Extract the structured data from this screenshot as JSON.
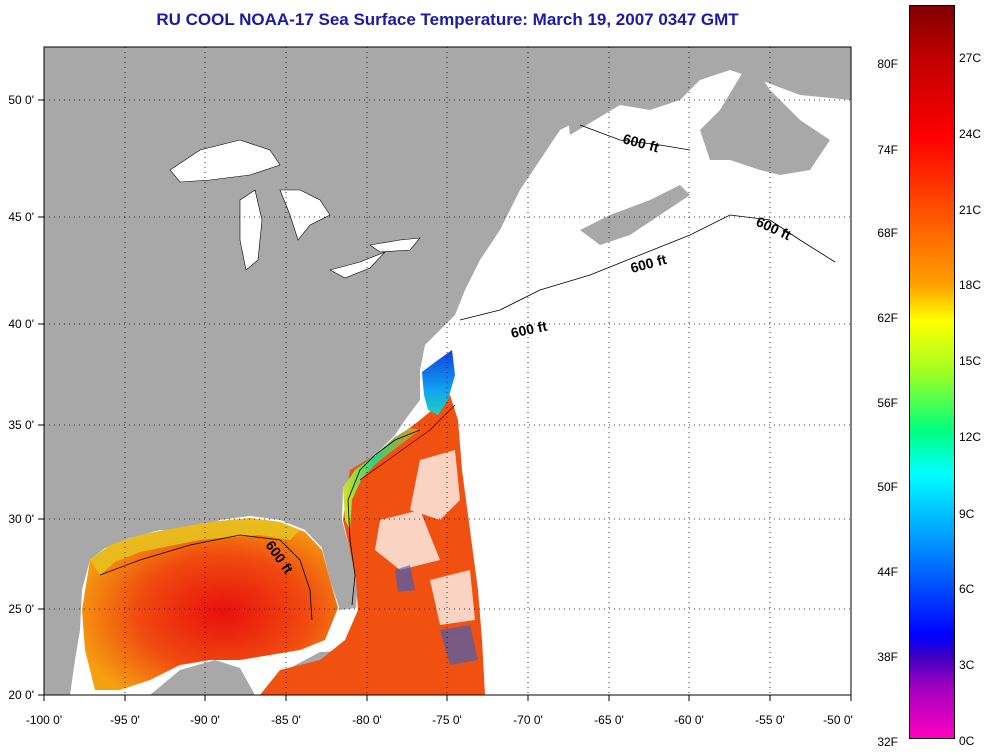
{
  "title": "RU COOL  NOAA-17  Sea Surface Temperature:  March 19, 2007 0347 GMT",
  "map": {
    "lon_ticks": [
      "-100 0'",
      "-95 0'",
      "-90 0'",
      "-85 0'",
      "-80 0'",
      "-75 0'",
      "-70 0'",
      "-65 0'",
      "-60 0'",
      "-55 0'",
      "-50 0'"
    ],
    "lat_ticks": [
      "50 0'",
      "45 0'",
      "40 0'",
      "35 0'",
      "30 0'",
      "25 0'",
      "20 0'"
    ],
    "contour_labels": [
      "600 ft",
      "600 ft",
      "600 ft",
      "600 ft",
      "600 ft"
    ],
    "colors": {
      "land": "#a8a8a8",
      "cloud_mask": "#ffffff"
    }
  },
  "colorbar": {
    "fahrenheit": [
      "80F",
      "74F",
      "68F",
      "62F",
      "56F",
      "50F",
      "44F",
      "38F",
      "32F"
    ],
    "celsius": [
      "27C",
      "24C",
      "21C",
      "18C",
      "15C",
      "12C",
      "9C",
      "6C",
      "3C",
      "0C"
    ]
  }
}
